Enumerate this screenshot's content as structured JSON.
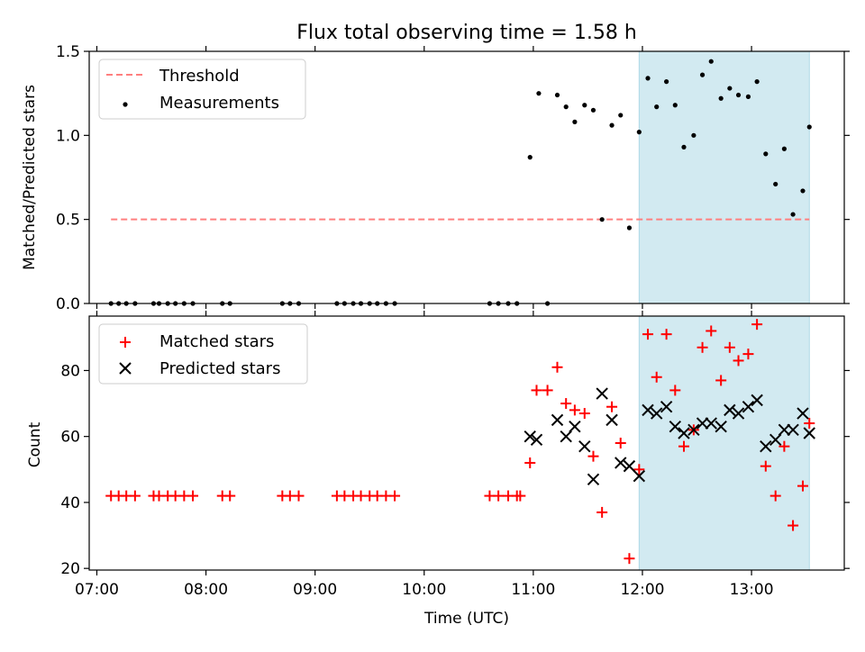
{
  "figure": {
    "title": "Flux total observing time = 1.58 h",
    "xlabel": "Time (UTC)"
  },
  "chart_data": [
    {
      "type": "scatter",
      "panel": "top",
      "ylabel": "Matched/Predicted stars",
      "ylim": [
        0,
        1.5
      ],
      "yticks": [
        "0.0",
        "0.5",
        "1.0",
        "1.5"
      ],
      "xlim_hours": [
        6.93,
        13.85
      ],
      "xticks": [
        "07:00",
        "08:00",
        "09:00",
        "10:00",
        "11:00",
        "12:00",
        "13:00"
      ],
      "xtick_hours": [
        7,
        8,
        9,
        10,
        11,
        12,
        13
      ],
      "shaded_region_hours": [
        11.97,
        13.53
      ],
      "shade_color": "#add8e6",
      "threshold": {
        "name": "Threshold",
        "value": 0.5,
        "x_range_hours": [
          7.13,
          13.53
        ],
        "color": "#ff7f7f"
      },
      "series": [
        {
          "name": "Measurements",
          "color": "#000000",
          "marker": "dot",
          "x": [
            7.13,
            7.2,
            7.27,
            7.35,
            7.52,
            7.57,
            7.65,
            7.72,
            7.8,
            7.88,
            8.15,
            8.22,
            8.7,
            8.77,
            8.85,
            9.2,
            9.27,
            9.35,
            9.42,
            9.5,
            9.57,
            9.65,
            9.73,
            10.6,
            10.68,
            10.77,
            10.85,
            10.97,
            11.05,
            11.13,
            11.22,
            11.3,
            11.38,
            11.47,
            11.55,
            11.63,
            11.72,
            11.8,
            11.88,
            11.97,
            12.05,
            12.13,
            12.22,
            12.3,
            12.38,
            12.47,
            12.55,
            12.63,
            12.72,
            12.8,
            12.88,
            12.97,
            13.05,
            13.13,
            13.22,
            13.3,
            13.38,
            13.47,
            13.53
          ],
          "y": [
            0,
            0,
            0,
            0,
            0,
            0,
            0,
            0,
            0,
            0,
            0,
            0,
            0,
            0,
            0,
            0,
            0,
            0,
            0,
            0,
            0,
            0,
            0,
            0,
            0,
            0,
            0,
            0.87,
            1.25,
            0,
            1.24,
            1.17,
            1.08,
            1.18,
            1.15,
            0.5,
            1.06,
            1.12,
            0.45,
            1.02,
            1.34,
            1.17,
            1.32,
            1.18,
            0.93,
            1.0,
            1.36,
            1.44,
            1.22,
            1.28,
            1.24,
            1.23,
            1.32,
            0.89,
            0.71,
            0.92,
            0.53,
            0.67,
            1.05
          ]
        }
      ],
      "legend": {
        "position": "top-left",
        "entries": [
          "Threshold",
          "Measurements"
        ]
      }
    },
    {
      "type": "scatter",
      "panel": "bottom",
      "ylabel": "Count",
      "ylim": [
        19.5,
        96.5
      ],
      "yticks": [
        "20",
        "40",
        "60",
        "80"
      ],
      "xlim_hours": [
        6.93,
        13.85
      ],
      "xticks": [
        "07:00",
        "08:00",
        "09:00",
        "10:00",
        "11:00",
        "12:00",
        "13:00"
      ],
      "xtick_hours": [
        7,
        8,
        9,
        10,
        11,
        12,
        13
      ],
      "shaded_region_hours": [
        11.97,
        13.53
      ],
      "shade_color": "#add8e6",
      "series": [
        {
          "name": "Matched stars",
          "color": "#ff0000",
          "marker": "plus",
          "x": [
            7.13,
            7.2,
            7.27,
            7.35,
            7.52,
            7.57,
            7.65,
            7.72,
            7.8,
            7.88,
            8.15,
            8.22,
            8.7,
            8.77,
            8.85,
            9.2,
            9.27,
            9.35,
            9.42,
            9.5,
            9.57,
            9.65,
            9.73,
            10.6,
            10.68,
            10.77,
            10.85,
            10.88,
            10.97,
            11.03,
            11.13,
            11.22,
            11.3,
            11.38,
            11.47,
            11.55,
            11.63,
            11.72,
            11.8,
            11.88,
            11.97,
            12.05,
            12.13,
            12.22,
            12.3,
            12.38,
            12.47,
            12.55,
            12.63,
            12.72,
            12.8,
            12.88,
            12.97,
            13.05,
            13.13,
            13.22,
            13.3,
            13.38,
            13.47,
            13.53
          ],
          "y": [
            42,
            42,
            42,
            42,
            42,
            42,
            42,
            42,
            42,
            42,
            42,
            42,
            42,
            42,
            42,
            42,
            42,
            42,
            42,
            42,
            42,
            42,
            42,
            42,
            42,
            42,
            42,
            42,
            52,
            74,
            74,
            81,
            70,
            68,
            67,
            54,
            37,
            69,
            58,
            23,
            50,
            91,
            78,
            91,
            74,
            57,
            62,
            87,
            92,
            77,
            87,
            83,
            85,
            94,
            51,
            42,
            57,
            33,
            45,
            64
          ]
        },
        {
          "name": "Predicted stars",
          "color": "#000000",
          "marker": "x",
          "x": [
            10.97,
            11.03,
            11.22,
            11.3,
            11.38,
            11.47,
            11.55,
            11.63,
            11.72,
            11.8,
            11.88,
            11.97,
            12.05,
            12.13,
            12.22,
            12.3,
            12.38,
            12.47,
            12.55,
            12.63,
            12.72,
            12.8,
            12.88,
            12.97,
            13.05,
            13.13,
            13.22,
            13.3,
            13.38,
            13.47,
            13.53
          ],
          "y": [
            60,
            59,
            65,
            60,
            63,
            57,
            47,
            73,
            65,
            52,
            51,
            48,
            68,
            67,
            69,
            63,
            61,
            62,
            64,
            64,
            63,
            68,
            67,
            69,
            71,
            57,
            59,
            62,
            62,
            67,
            61
          ]
        }
      ],
      "legend": {
        "position": "top-left",
        "entries": [
          "Matched stars",
          "Predicted stars"
        ]
      }
    }
  ]
}
